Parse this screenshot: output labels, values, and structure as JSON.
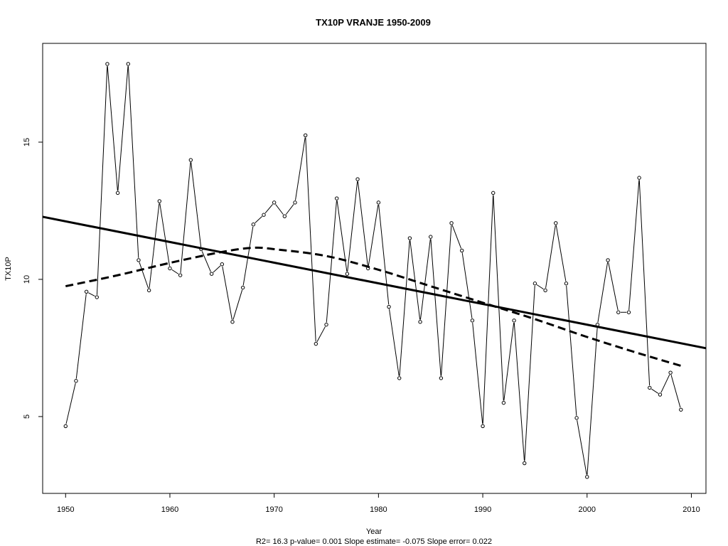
{
  "chart_data": {
    "type": "line",
    "title": "TX10P    VRANJE 1950-2009",
    "xlabel": "Year",
    "ylabel": "TX10P",
    "stats_line": "R2= 16.3  p-value= 0.001  Slope estimate= -0.075  Slope error= 0.022",
    "xlim": [
      1947.8,
      2011.4
    ],
    "ylim": [
      2.2,
      18.6
    ],
    "xticks": [
      1950,
      1960,
      1970,
      1980,
      1990,
      2000,
      2010
    ],
    "yticks": [
      5,
      10,
      15
    ],
    "series": [
      {
        "style": "line+open-circles",
        "x": [
          1950,
          1951,
          1952,
          1953,
          1954,
          1955,
          1956,
          1957,
          1958,
          1959,
          1960,
          1961,
          1962,
          1963,
          1964,
          1965,
          1966,
          1967,
          1968,
          1969,
          1970,
          1971,
          1972,
          1973,
          1974,
          1975,
          1976,
          1977,
          1978,
          1979,
          1980,
          1981,
          1982,
          1983,
          1984,
          1985,
          1986,
          1987,
          1988,
          1989,
          1990,
          1991,
          1992,
          1993,
          1994,
          1995,
          1996,
          1997,
          1998,
          1999,
          2000,
          2001,
          2002,
          2003,
          2004,
          2005,
          2006,
          2007,
          2008,
          2009
        ],
        "values": [
          4.65,
          6.3,
          9.55,
          9.35,
          17.85,
          13.15,
          17.85,
          10.7,
          9.6,
          12.85,
          10.4,
          10.15,
          14.35,
          11.1,
          10.2,
          10.55,
          8.45,
          9.7,
          12.0,
          12.35,
          12.8,
          12.3,
          12.8,
          15.25,
          7.65,
          8.35,
          12.95,
          10.2,
          13.65,
          10.4,
          12.8,
          9.0,
          6.4,
          11.5,
          8.45,
          11.55,
          6.4,
          12.05,
          11.05,
          8.5,
          4.65,
          13.15,
          5.5,
          8.5,
          3.3,
          9.85,
          9.6,
          12.05,
          9.85,
          4.95,
          2.8,
          8.35,
          10.7,
          8.8,
          8.8,
          13.7,
          6.05,
          5.8,
          6.6,
          5.25
        ]
      },
      {
        "style": "linear-trend",
        "x": [
          1947.8,
          2011.4
        ],
        "values": [
          12.28,
          7.49
        ]
      },
      {
        "style": "smooth-dashed",
        "x": [
          1950,
          1955,
          1960,
          1965,
          1968,
          1970,
          1975,
          1980,
          1985,
          1990,
          1995,
          2000,
          2005,
          2009
        ],
        "values": [
          9.75,
          10.15,
          10.6,
          11.0,
          11.15,
          11.1,
          10.85,
          10.35,
          9.75,
          9.15,
          8.55,
          7.9,
          7.3,
          6.85
        ]
      }
    ]
  }
}
